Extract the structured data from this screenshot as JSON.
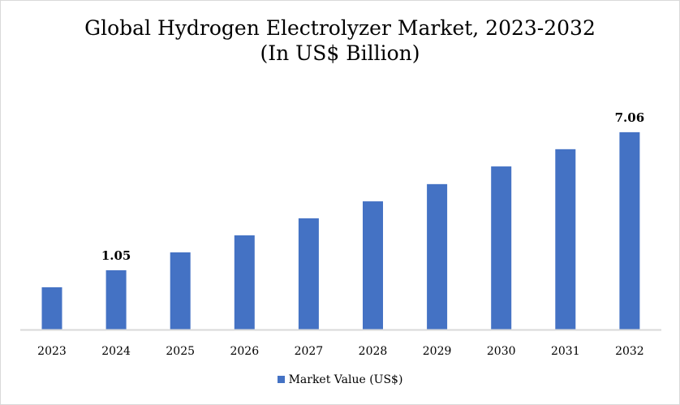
{
  "chart_data": {
    "type": "bar",
    "title": "Global Hydrogen Electrolyzer Market, 2023-2032",
    "subtitle": "(In US$ Billion)",
    "categories": [
      "2023",
      "2024",
      "2025",
      "2026",
      "2027",
      "2028",
      "2029",
      "2030",
      "2031",
      "2032"
    ],
    "series": [
      {
        "name": "Market Value (US$)",
        "values": [
          0.31,
          1.05,
          1.83,
          2.57,
          3.31,
          4.05,
          4.8,
          5.57,
          6.32,
          7.06
        ],
        "color": "#4472c4"
      }
    ],
    "data_labels": [
      {
        "category": "2024",
        "text": "1.05"
      },
      {
        "category": "2032",
        "text": "7.06"
      }
    ],
    "xlabel": "",
    "ylabel": "",
    "ylim": [
      -1.53,
      8.54
    ],
    "y_axis_visible": false,
    "grid": false,
    "legend": "bottom"
  }
}
